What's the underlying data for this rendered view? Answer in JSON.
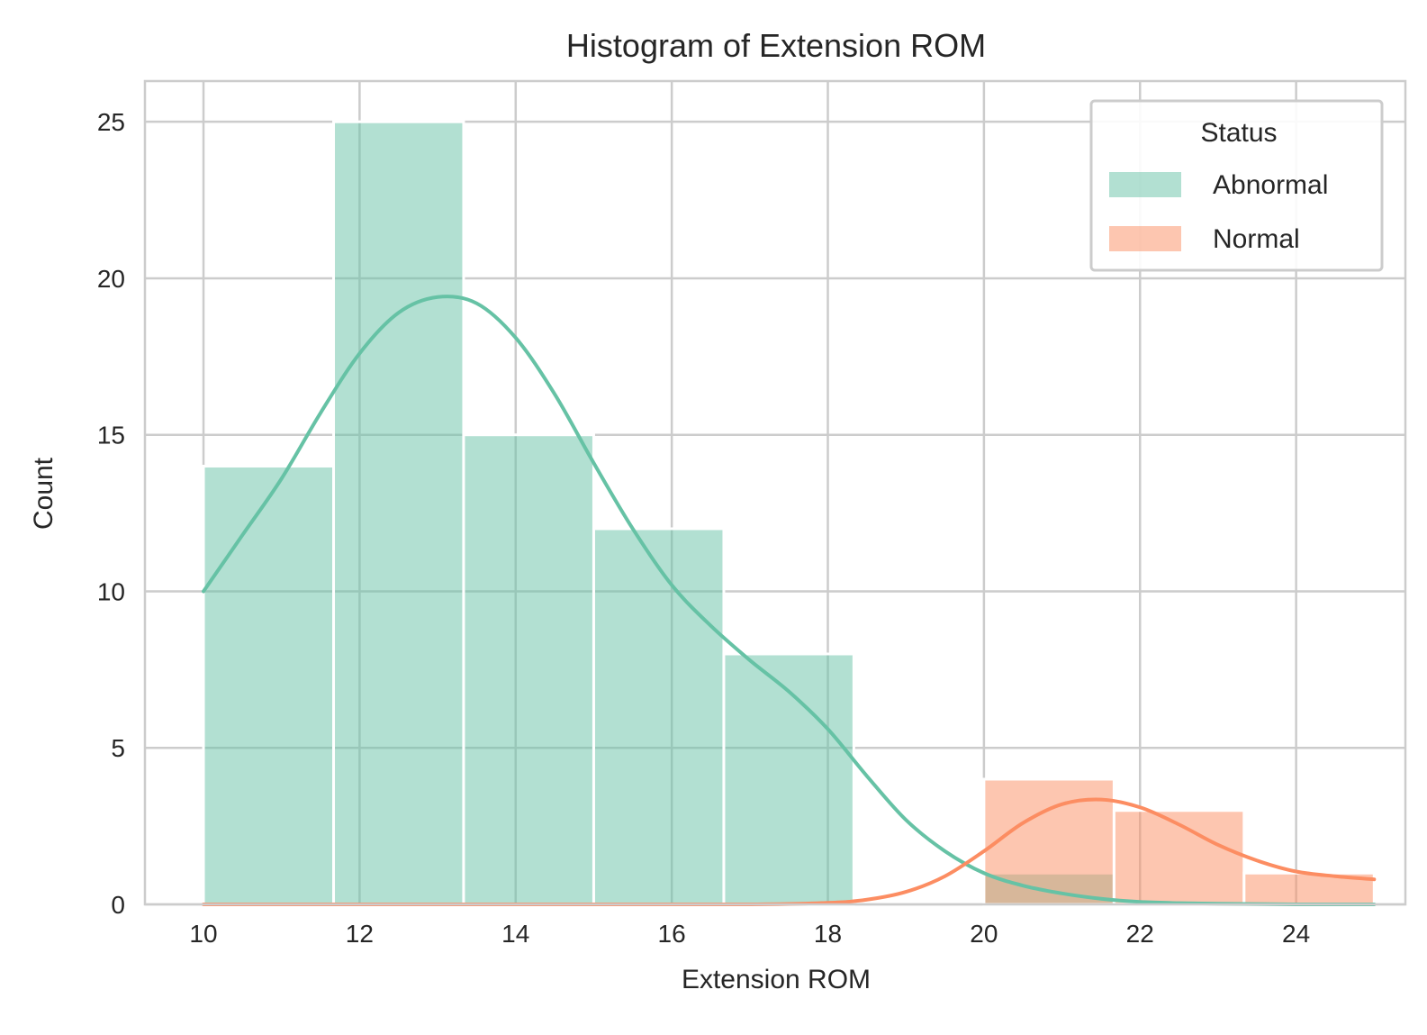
{
  "chart_data": {
    "type": "histogram",
    "title": "Histogram of Extension ROM",
    "xlabel": "Extension ROM",
    "ylabel": "Count",
    "xlim": [
      9.25,
      25.4
    ],
    "ylim": [
      0,
      26.3
    ],
    "xticks": [
      10,
      12,
      14,
      16,
      18,
      20,
      22,
      24
    ],
    "yticks": [
      0,
      5,
      10,
      15,
      20,
      25
    ],
    "grid": true,
    "legend": {
      "title": "Status",
      "position": "top-right",
      "entries": [
        "Abnormal",
        "Normal"
      ]
    },
    "bin_edges": [
      10,
      11.667,
      13.333,
      15,
      16.667,
      18.333,
      20,
      21.667,
      23.333,
      25
    ],
    "series": [
      {
        "name": "Abnormal",
        "color": "#66c2a5",
        "counts": [
          14,
          25,
          15,
          12,
          8,
          0,
          1,
          0,
          0
        ],
        "kde": {
          "x": [
            10,
            10.5,
            11,
            11.5,
            12,
            12.5,
            13,
            13.5,
            14,
            14.5,
            15,
            15.5,
            16,
            16.5,
            17,
            17.5,
            18,
            18.5,
            19,
            19.5,
            20,
            20.5,
            21,
            21.5,
            22,
            22.5,
            23,
            23.5,
            24,
            24.5,
            25
          ],
          "y": [
            10,
            11.8,
            13.6,
            15.7,
            17.6,
            18.9,
            19.4,
            19.2,
            18.1,
            16.3,
            14.1,
            12,
            10.2,
            8.9,
            7.8,
            6.8,
            5.6,
            4.1,
            2.7,
            1.7,
            1,
            0.6,
            0.35,
            0.18,
            0.08,
            0.04,
            0.02,
            0.01,
            0,
            0,
            0
          ]
        }
      },
      {
        "name": "Normal",
        "color": "#fc8d62",
        "counts": [
          0,
          0,
          0,
          0,
          0,
          0,
          4,
          3,
          1
        ],
        "kde": {
          "x": [
            10,
            14,
            17,
            18,
            18.5,
            19,
            19.5,
            20,
            20.5,
            21,
            21.5,
            22,
            22.5,
            23,
            23.5,
            24,
            24.5,
            25
          ],
          "y": [
            0,
            0,
            0,
            0.05,
            0.15,
            0.4,
            0.9,
            1.7,
            2.6,
            3.2,
            3.35,
            3.1,
            2.55,
            1.9,
            1.4,
            1.05,
            0.9,
            0.8
          ]
        }
      }
    ]
  }
}
